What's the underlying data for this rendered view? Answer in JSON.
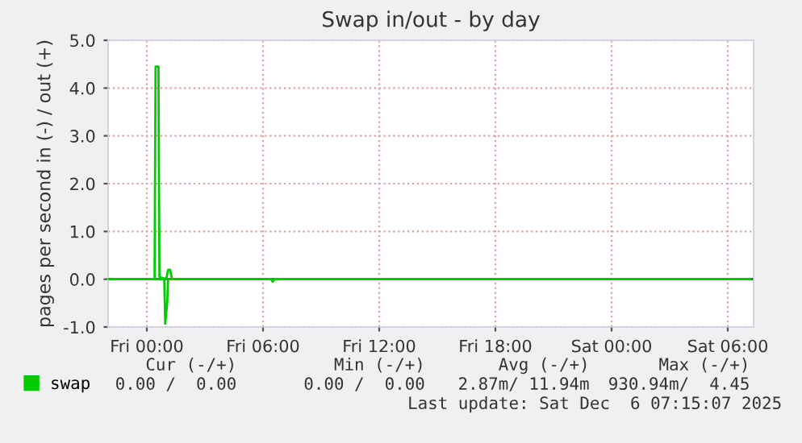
{
  "chart_data": {
    "type": "line",
    "title": "Swap in/out - by day",
    "ylabel": "pages per second in (-) / out (+)",
    "series": [
      {
        "color": "#00cc00",
        "x": [
          "2025-12-04T22:00",
          "2025-12-05T00:54",
          "2025-12-05T00:57",
          "2025-12-05T01:03",
          "2025-12-05T01:06",
          "2025-12-05T06:24",
          "2025-12-05T06:30",
          "2025-12-05T06:36",
          "2025-12-06T07:12"
        ],
        "values": [
          0,
          0,
          -0.93,
          -0.5,
          0,
          0,
          -0.05,
          0,
          0
        ]
      },
      {
        "name": "swap",
        "color": "#00cc00",
        "x": [
          "2025-12-04T22:00",
          "2025-12-05T00:24",
          "2025-12-05T00:27",
          "2025-12-05T00:36",
          "2025-12-05T00:39",
          "2025-12-05T01:00",
          "2025-12-05T01:06",
          "2025-12-05T01:12",
          "2025-12-05T01:18",
          "2025-12-06T07:12"
        ],
        "values": [
          0,
          0,
          4.45,
          4.45,
          0.05,
          0,
          0.2,
          0.2,
          0,
          0
        ]
      }
    ],
    "xlim": [
      "2025-12-04T22:00",
      "2025-12-06T07:20"
    ],
    "xticks": [
      {
        "value": "2025-12-05T00:00",
        "label": "Fri 00:00"
      },
      {
        "value": "2025-12-05T06:00",
        "label": "Fri 06:00"
      },
      {
        "value": "2025-12-05T12:00",
        "label": "Fri 12:00"
      },
      {
        "value": "2025-12-05T18:00",
        "label": "Fri 18:00"
      },
      {
        "value": "2025-12-06T00:00",
        "label": "Sat 00:00"
      },
      {
        "value": "2025-12-06T06:00",
        "label": "Sat 06:00"
      }
    ],
    "ylim": [
      -1,
      5
    ],
    "yticks": [
      {
        "value": -1,
        "label": "-1.0"
      },
      {
        "value": 0,
        "label": "0.0"
      },
      {
        "value": 1,
        "label": "1.0"
      },
      {
        "value": 2,
        "label": "2.0"
      },
      {
        "value": 3,
        "label": "3.0"
      },
      {
        "value": 4,
        "label": "4.0"
      },
      {
        "value": 5,
        "label": "5.0"
      }
    ],
    "ref_lines": [
      {
        "axis": "y",
        "value": 0,
        "color": "#000000"
      }
    ],
    "grid": true,
    "line_style": "solid",
    "marker": "none",
    "legend": "bottom left",
    "annotations": [
      "Cur (-/+)",
      "Min (-/+)",
      "Avg (-/+)",
      "Max (-/+)",
      "0.00 /  0.00",
      "0.00 /  0.00",
      "2.87m/ 11.94m",
      "930.94m/  4.45",
      "Last update: Sat Dec  6 07:15:07 2025"
    ]
  }
}
